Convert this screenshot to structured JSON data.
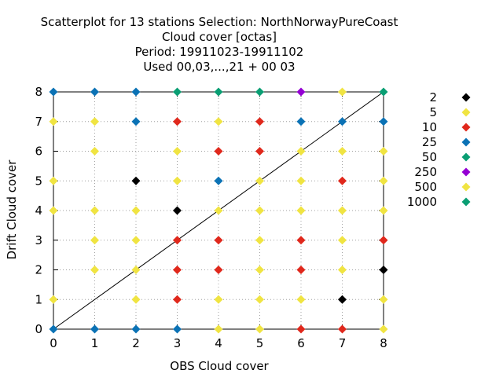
{
  "chart_data": {
    "type": "scatter",
    "title_lines": [
      "Scatterplot for   13 stations Selection: NorthNorwayPureCoast",
      "Cloud cover [octas]",
      "Period: 19911023-19911102",
      "Used  00,03,...,21  + 00 03"
    ],
    "xlabel": "OBS Cloud cover",
    "ylabel": "Drift Cloud cover",
    "xlim": [
      0,
      8
    ],
    "ylim": [
      0,
      8
    ],
    "xticks": [
      "0",
      "1",
      "2",
      "3",
      "4",
      "5",
      "6",
      "7",
      "8"
    ],
    "yticks": [
      "0",
      "1",
      "2",
      "3",
      "4",
      "5",
      "6",
      "7",
      "8"
    ],
    "grid": true,
    "diagonal_line": true,
    "legend_position": "right",
    "series": [
      {
        "name": "2",
        "color": "#000000",
        "points": [
          [
            2,
            5
          ],
          [
            3,
            4
          ],
          [
            7,
            1
          ],
          [
            8,
            2
          ]
        ]
      },
      {
        "name": "5",
        "color": "#f0e442",
        "points": []
      },
      {
        "name": "10",
        "color": "#e0281c",
        "points": [
          [
            3,
            7
          ],
          [
            5,
            7
          ],
          [
            4,
            6
          ],
          [
            5,
            6
          ],
          [
            7,
            5
          ],
          [
            3,
            3
          ],
          [
            4,
            3
          ],
          [
            6,
            3
          ],
          [
            8,
            3
          ],
          [
            3,
            2
          ],
          [
            4,
            2
          ],
          [
            6,
            2
          ],
          [
            3,
            1
          ],
          [
            6,
            0
          ],
          [
            7,
            0
          ]
        ]
      },
      {
        "name": "25",
        "color": "#0b72b5",
        "points": [
          [
            0,
            8
          ],
          [
            1,
            8
          ],
          [
            2,
            8
          ],
          [
            2,
            7
          ],
          [
            6,
            7
          ],
          [
            7,
            7
          ],
          [
            8,
            7
          ],
          [
            4,
            5
          ],
          [
            0,
            0
          ],
          [
            1,
            0
          ],
          [
            2,
            0
          ],
          [
            3,
            0
          ]
        ]
      },
      {
        "name": "50",
        "color": "#0a9e73",
        "points": [
          [
            3,
            8
          ],
          [
            4,
            8
          ],
          [
            5,
            8
          ]
        ]
      },
      {
        "name": "250",
        "color": "#9400d3",
        "points": [
          [
            6,
            8
          ]
        ]
      },
      {
        "name": "500",
        "color": "#f0e442",
        "points": [
          [
            7,
            8
          ],
          [
            0,
            7
          ],
          [
            1,
            7
          ],
          [
            4,
            7
          ],
          [
            1,
            6
          ],
          [
            3,
            6
          ],
          [
            6,
            6
          ],
          [
            7,
            6
          ],
          [
            8,
            6
          ],
          [
            0,
            5
          ],
          [
            3,
            5
          ],
          [
            5,
            5
          ],
          [
            6,
            5
          ],
          [
            8,
            5
          ],
          [
            0,
            4
          ],
          [
            1,
            4
          ],
          [
            2,
            4
          ],
          [
            4,
            4
          ],
          [
            5,
            4
          ],
          [
            6,
            4
          ],
          [
            7,
            4
          ],
          [
            8,
            4
          ],
          [
            1,
            3
          ],
          [
            2,
            3
          ],
          [
            5,
            3
          ],
          [
            7,
            3
          ],
          [
            1,
            2
          ],
          [
            2,
            2
          ],
          [
            5,
            2
          ],
          [
            7,
            2
          ],
          [
            0,
            1
          ],
          [
            2,
            1
          ],
          [
            4,
            1
          ],
          [
            5,
            1
          ],
          [
            6,
            1
          ],
          [
            8,
            1
          ],
          [
            4,
            0
          ],
          [
            5,
            0
          ],
          [
            8,
            0
          ]
        ]
      },
      {
        "name": "1000",
        "color": "#0a9e73",
        "points": [
          [
            8,
            8
          ]
        ]
      }
    ]
  }
}
